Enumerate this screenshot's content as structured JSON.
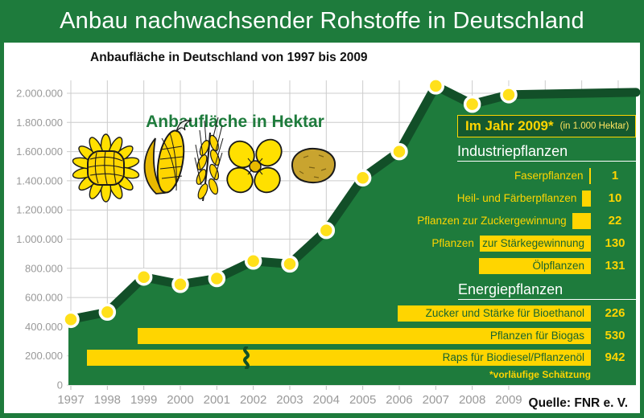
{
  "header": {
    "title": "Anbau nachwachsender Rohstoffe in Deutschland"
  },
  "chart": {
    "subtitle": "Anbaufläche in Deutschland von 1997 bis 2009"
  },
  "chart_data": {
    "type": "area",
    "series_label": "Anbaufläche in Hektar",
    "x": [
      1997,
      1998,
      1999,
      2000,
      2001,
      2002,
      2003,
      2004,
      2005,
      2006,
      2007,
      2008,
      2009
    ],
    "values": [
      450000,
      500000,
      740000,
      690000,
      730000,
      850000,
      830000,
      1060000,
      1420000,
      1600000,
      2050000,
      1925000,
      1990000
    ],
    "ylabel": "Hektar",
    "ylim": [
      0,
      2000000
    ],
    "ytick_step": 200000,
    "grid": true,
    "legend_position": "none"
  },
  "icons": [
    "sunflower-icon",
    "corn-icon",
    "wheat-icon",
    "rapeseed-icon",
    "potato-icon"
  ],
  "panel2009": {
    "box_title": "Im Jahr 2009*",
    "box_unit": "(in 1.000 Hektar)",
    "groups": [
      {
        "header": "Industriepflanzen",
        "rows": [
          {
            "label_outside": "Faserpflanzen",
            "label_inside": "",
            "value": 1
          },
          {
            "label_outside": "Heil- und Färberpflanzen",
            "label_inside": "",
            "value": 10
          },
          {
            "label_outside": "Pflanzen zur Zuckergewinnung",
            "label_inside": "",
            "value": 22
          },
          {
            "label_outside": "Pflanzen",
            "label_inside": "zur Stärkegewinnung",
            "value": 130
          },
          {
            "label_outside": "",
            "label_inside": "Ölpflanzen",
            "value": 131
          }
        ]
      },
      {
        "header": "Energiepflanzen",
        "rows": [
          {
            "label_outside": "",
            "label_inside": "Zucker und Stärke für Bioethanol",
            "value": 226
          },
          {
            "label_outside": "",
            "label_inside": "Pflanzen für Biogas",
            "value": 530
          },
          {
            "label_outside": "",
            "label_inside": "Raps für Biodiesel/Pflanzenöl",
            "value": 942,
            "truncated": true
          }
        ]
      }
    ],
    "footnote": "*vorläufige Schätzung"
  },
  "source": {
    "label": "Quelle: FNR e. V."
  },
  "colors": {
    "header_green": "#1E7B3C",
    "area_green": "#1E7B3C",
    "line_green": "#124F28",
    "bar_yellow": "#FFD500",
    "dot_yellow": "#FFE01A",
    "grid_gray": "#CCCCCC",
    "axis_text_gray": "#999999",
    "inside_label_green": "#17642F"
  }
}
